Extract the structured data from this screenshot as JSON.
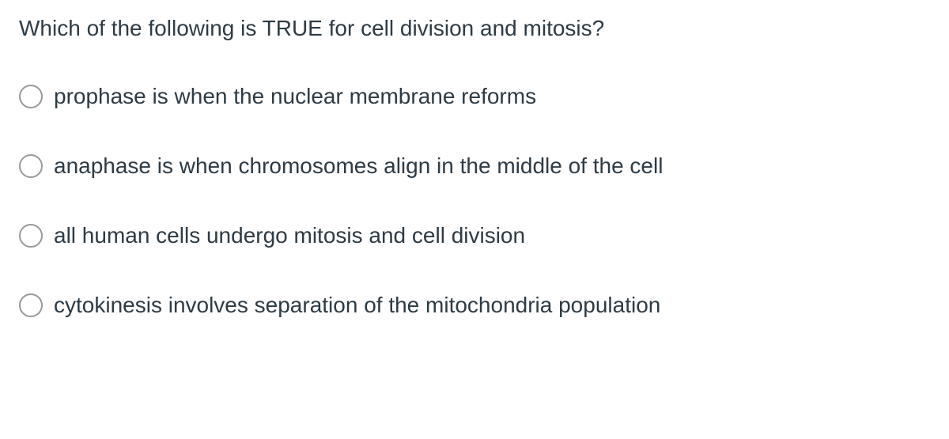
{
  "question": {
    "text": "Which of the following is TRUE for cell division and mitosis?",
    "text_color": "#2d3b45",
    "font_size": 28
  },
  "options": [
    {
      "label": "prophase is when the nuclear membrane reforms",
      "selected": false
    },
    {
      "label": "anaphase is when chromosomes align in the middle of the cell",
      "selected": false
    },
    {
      "label": "all human cells undergo mitosis and cell division",
      "selected": false
    },
    {
      "label": "cytokinesis involves separation of the mitochondria population",
      "selected": false
    }
  ],
  "styling": {
    "background_color": "#ffffff",
    "radio_border_color": "#999999",
    "radio_size": 30,
    "option_gap": 56
  }
}
